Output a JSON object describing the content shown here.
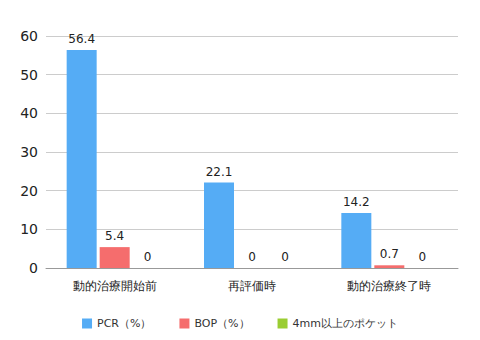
{
  "chart_data": {
    "type": "bar",
    "categories": [
      "動的治療開始前",
      "再評価時",
      "動的治療終了時"
    ],
    "series": [
      {
        "name": "PCR（%）",
        "color": "#55acf5",
        "values": [
          56.4,
          22.1,
          14.2
        ]
      },
      {
        "name": "BOP（%）",
        "color": "#f56d6d",
        "values": [
          5.4,
          0,
          0.7
        ]
      },
      {
        "name": "4mm以上のポケット",
        "color": "#9acd32",
        "values": [
          0,
          0,
          0
        ]
      }
    ],
    "ylim": [
      0,
      60
    ],
    "yticks": [
      0,
      10,
      20,
      30,
      40,
      50,
      60
    ],
    "grid": true,
    "legend": "bottom",
    "data_labels": true
  }
}
